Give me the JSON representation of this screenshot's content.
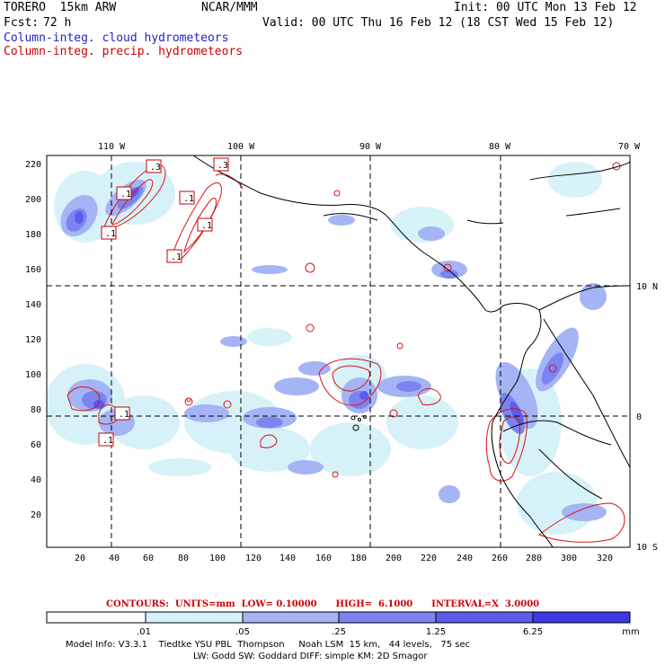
{
  "header": {
    "model": "TORERO  15km ARW",
    "org": "NCAR/MMM",
    "init": "Init: 00 UTC Mon 13 Feb 12",
    "fcst_label": "Fcst:",
    "fcst_value": "72 h",
    "valid": "Valid: 00 UTC Thu 16 Feb 12 (18 CST Wed 15 Feb 12)",
    "field1": "Column-integ. cloud hydrometeors",
    "field2": "Column-integ. precip. hydrometeors"
  },
  "colors": {
    "cloud": "#2222cc",
    "precip": "#cc0000",
    "coast": "#000000",
    "shade1": "#d4f2f8",
    "shade2": "#a4b4f4",
    "shade3": "#7c84f0",
    "shade4": "#5a5cea",
    "shade5": "#3b3be4"
  },
  "axes": {
    "lon_labels": [
      "110 W",
      "100 W",
      "90 W",
      "80 W",
      "70 W"
    ],
    "lat_labels": [
      "10 N",
      "0",
      "10 S"
    ],
    "x_ticks": [
      "20",
      "40",
      "60",
      "80",
      "100",
      "120",
      "140",
      "160",
      "180",
      "200",
      "220",
      "240",
      "260",
      "280",
      "300",
      "320"
    ],
    "y_ticks": [
      "20",
      "40",
      "60",
      "80",
      "100",
      "120",
      "140",
      "160",
      "180",
      "200",
      "220"
    ]
  },
  "contour_boxes": [
    ".3",
    ".3",
    ".1",
    ".1",
    ".1",
    ".1",
    ".1",
    ".1",
    ".1"
  ],
  "contour_info": {
    "text": "CONTOURS:  UNITS=mm  LOW= 0.10000      HIGH=  6.1000      INTERVAL=X  3.0000"
  },
  "legend": {
    "levels": [
      ".01",
      ".05",
      ".25",
      "1.25",
      "6.25"
    ],
    "units": "mm"
  },
  "model_info": {
    "line1": "Model Info: V3.3.1    Tiedtke YSU PBL  Thompson     Noah LSM  15 km,   44 levels,   75 sec",
    "line2": "LW: Godd SW: Goddard DIFF: simple KM: 2D Smagor"
  }
}
